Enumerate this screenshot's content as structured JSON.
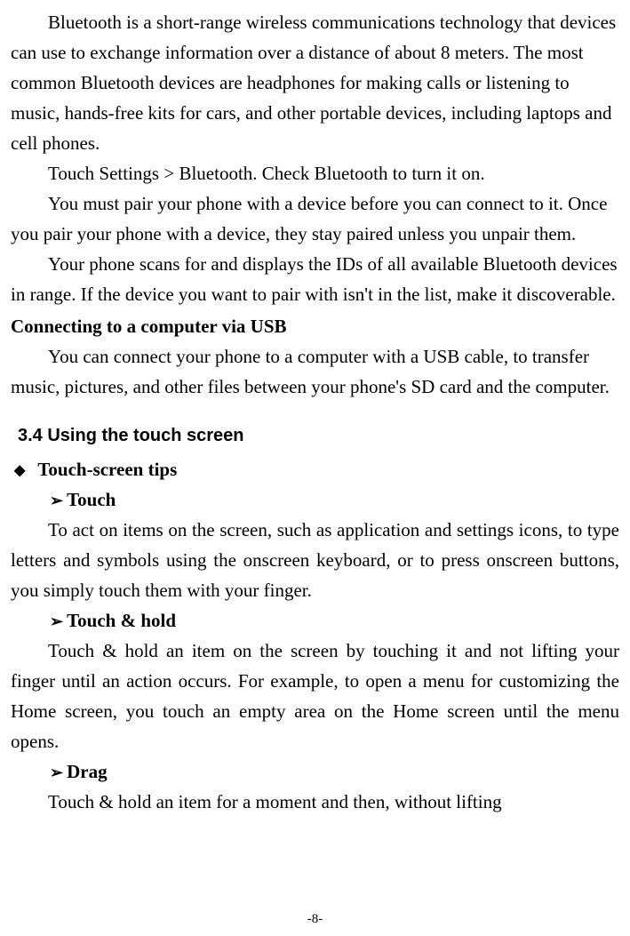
{
  "paragraphs": {
    "p1": "Bluetooth is a short-range wireless communications technology that devices can use to exchange information over a distance of about 8 meters. The most common Bluetooth devices are headphones for making calls or listening to music, hands-free kits for cars, and other portable devices, including laptops and cell phones.",
    "p2": "Touch Settings > Bluetooth. Check Bluetooth to turn it on.",
    "p3": "You must pair your phone with a device before you can connect to it. Once you pair your phone with a device, they stay paired unless you unpair them.",
    "p4": "Your phone scans for and displays the IDs of all available Bluetooth devices in range. If the device you want to pair with isn't in the list, make it discoverable.",
    "h1": "Connecting to a computer via USB",
    "p5": "You can connect your phone to a computer with a USB cable, to transfer music, pictures, and other files between your phone's SD card and the computer.",
    "section": "3.4    Using the touch screen",
    "tips_title": "Touch-screen tips",
    "touch_title": "Touch",
    "touch_body": "To act on items on the screen, such as application and settings icons, to type letters and symbols using the onscreen keyboard, or to press onscreen buttons, you simply touch them with your finger.",
    "hold_title": "Touch & hold",
    "hold_body": "Touch & hold an item on the screen by touching it and not lifting your finger until an action occurs. For example, to open a menu for customizing the Home screen, you touch an empty area on the Home screen until the menu opens.",
    "drag_title": "Drag",
    "drag_body": "Touch & hold an item for a moment and then, without lifting"
  },
  "bullets": {
    "diamond": "◆",
    "arrow": "➢"
  },
  "page_number": "-8-"
}
